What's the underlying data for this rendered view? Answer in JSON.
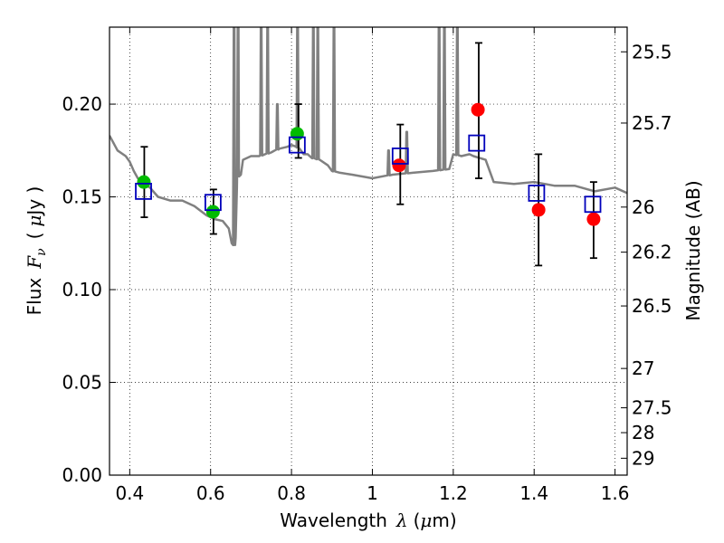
{
  "chart_data": {
    "type": "scatter",
    "title": "",
    "xlabel": {
      "text": "Wavelength",
      "symbol": "λ",
      "unit_open": "(",
      "unit_symbol": "μ",
      "unit_rest": "m)"
    },
    "ylabel": {
      "text": "Flux",
      "symbol": "F",
      "subscript": "ν",
      "unit_open": "(",
      "unit_symbol": "μ",
      "unit_rest": "Jy )"
    },
    "y2label": "Magnitude (AB)",
    "xlim": [
      0.35,
      1.63
    ],
    "ylim": [
      0.0,
      0.2415
    ],
    "grid": true,
    "xticks": [
      {
        "value": 0.4,
        "label": "0.4"
      },
      {
        "value": 0.6,
        "label": "0.6"
      },
      {
        "value": 0.8,
        "label": "0.8"
      },
      {
        "value": 1.0,
        "label": "1"
      },
      {
        "value": 1.2,
        "label": "1.2"
      },
      {
        "value": 1.4,
        "label": "1.4"
      },
      {
        "value": 1.6,
        "label": "1.6"
      }
    ],
    "yticks": [
      {
        "value": 0.0,
        "label": "0.00"
      },
      {
        "value": 0.05,
        "label": "0.05"
      },
      {
        "value": 0.1,
        "label": "0.10"
      },
      {
        "value": 0.15,
        "label": "0.15"
      },
      {
        "value": 0.2,
        "label": "0.20"
      }
    ],
    "y2ticks": [
      {
        "flux": 0.2282,
        "label": "25.5"
      },
      {
        "flux": 0.1898,
        "label": "25.7"
      },
      {
        "flux": 0.1445,
        "label": "26"
      },
      {
        "flux": 0.1202,
        "label": "26.2"
      },
      {
        "flux": 0.0912,
        "label": "26.5"
      },
      {
        "flux": 0.0575,
        "label": "27"
      },
      {
        "flux": 0.0363,
        "label": "27.5"
      },
      {
        "flux": 0.0229,
        "label": "28"
      },
      {
        "flux": 0.0091,
        "label": "29"
      }
    ],
    "model_spectrum": {
      "name": "",
      "color": "#808080",
      "x": [
        0.35,
        0.37,
        0.39,
        0.4,
        0.41,
        0.42,
        0.43,
        0.45,
        0.47,
        0.5,
        0.53,
        0.56,
        0.59,
        0.61,
        0.63,
        0.645,
        0.652,
        0.658,
        0.662,
        0.665,
        0.67,
        0.675,
        0.68,
        0.7,
        0.72,
        0.75,
        0.77,
        0.79,
        0.8,
        0.812,
        0.82,
        0.83,
        0.84,
        0.85,
        0.87,
        0.89,
        0.9,
        0.92,
        0.95,
        1.0,
        1.05,
        1.1,
        1.15,
        1.19,
        1.2,
        1.22,
        1.24,
        1.25,
        1.28,
        1.3,
        1.35,
        1.4,
        1.45,
        1.5,
        1.55,
        1.6,
        1.63
      ],
      "y": [
        0.183,
        0.175,
        0.172,
        0.169,
        0.164,
        0.16,
        0.158,
        0.155,
        0.15,
        0.148,
        0.148,
        0.145,
        0.14,
        0.138,
        0.137,
        0.133,
        0.125,
        0.124,
        0.128,
        0.155,
        0.165,
        0.162,
        0.17,
        0.172,
        0.172,
        0.174,
        0.176,
        0.177,
        0.178,
        0.177,
        0.176,
        0.173,
        0.173,
        0.171,
        0.17,
        0.167,
        0.164,
        0.163,
        0.162,
        0.16,
        0.162,
        0.163,
        0.164,
        0.165,
        0.173,
        0.172,
        0.173,
        0.172,
        0.17,
        0.158,
        0.157,
        0.158,
        0.156,
        0.156,
        0.153,
        0.155,
        0.152
      ],
      "emission_lines": [
        {
          "x": 0.658,
          "peak": 0.2415
        },
        {
          "x": 0.668,
          "peak": 0.2415
        },
        {
          "x": 0.725,
          "peak": 0.2415
        },
        {
          "x": 0.741,
          "peak": 0.2415
        },
        {
          "x": 0.765,
          "peak": 0.2
        },
        {
          "x": 0.815,
          "peak": 0.2415
        },
        {
          "x": 0.854,
          "peak": 0.2415
        },
        {
          "x": 0.865,
          "peak": 0.2415
        },
        {
          "x": 0.905,
          "peak": 0.2415
        },
        {
          "x": 1.04,
          "peak": 0.175
        },
        {
          "x": 1.085,
          "peak": 0.185
        },
        {
          "x": 1.165,
          "peak": 0.2415
        },
        {
          "x": 1.178,
          "peak": 0.2415
        },
        {
          "x": 1.21,
          "peak": 0.2415
        }
      ]
    },
    "series": [
      {
        "name": "",
        "marker": "circle",
        "color": "#00bb00",
        "points": [
          {
            "x": 0.435,
            "y": 0.158
          },
          {
            "x": 0.606,
            "y": 0.142
          },
          {
            "x": 0.814,
            "y": 0.184
          }
        ]
      },
      {
        "name": "",
        "marker": "circle",
        "color": "#ff0000",
        "points": [
          {
            "x": 1.066,
            "y": 0.167
          },
          {
            "x": 1.261,
            "y": 0.197
          },
          {
            "x": 1.411,
            "y": 0.143
          },
          {
            "x": 1.547,
            "y": 0.138
          }
        ]
      },
      {
        "name": "",
        "marker": "square",
        "color": "#0000bb",
        "points": [
          {
            "x": 0.434,
            "y": 0.153
          },
          {
            "x": 0.606,
            "y": 0.147
          },
          {
            "x": 0.814,
            "y": 0.178
          },
          {
            "x": 1.069,
            "y": 0.172
          },
          {
            "x": 1.258,
            "y": 0.179
          },
          {
            "x": 1.406,
            "y": 0.152
          },
          {
            "x": 1.545,
            "y": 0.146
          }
        ]
      }
    ],
    "error_bars": [
      {
        "x": 0.436,
        "low": 0.139,
        "high": 0.177
      },
      {
        "x": 0.607,
        "low": 0.13,
        "high": 0.154
      },
      {
        "x": 0.817,
        "low": 0.171,
        "high": 0.2
      },
      {
        "x": 1.069,
        "low": 0.146,
        "high": 0.189
      },
      {
        "x": 1.263,
        "low": 0.16,
        "high": 0.233
      },
      {
        "x": 1.411,
        "low": 0.113,
        "high": 0.173
      },
      {
        "x": 1.547,
        "low": 0.117,
        "high": 0.158
      }
    ]
  }
}
